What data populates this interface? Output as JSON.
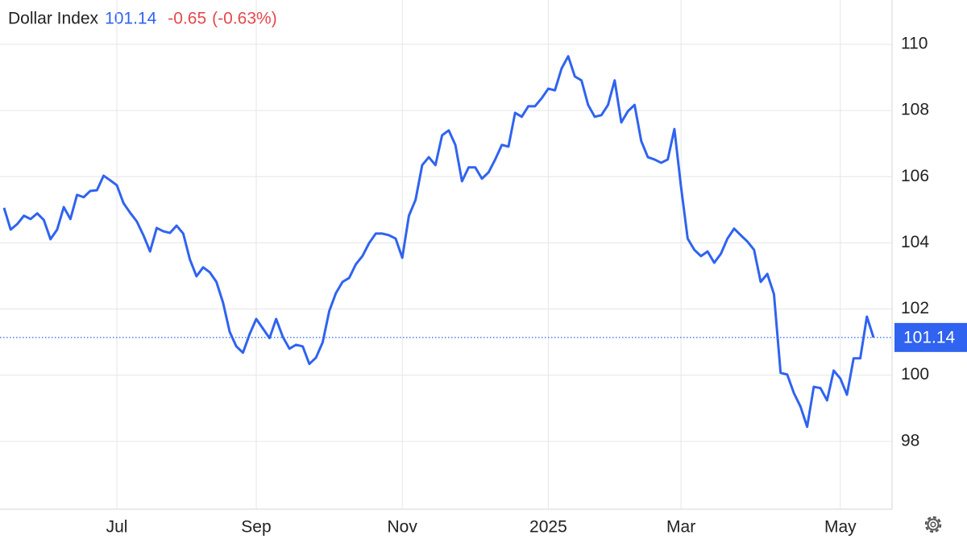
{
  "chart_data": {
    "type": "line",
    "change": "-0.65",
    "change_percent": "(-0.63%)",
    "categories": [
      null,
      null,
      null,
      null,
      null,
      null,
      null,
      null,
      null,
      null,
      null,
      null,
      null,
      null,
      null,
      null,
      null,
      "Jul",
      null,
      null,
      null,
      null,
      null,
      null,
      null,
      null,
      null,
      null,
      null,
      null,
      null,
      null,
      null,
      null,
      null,
      null,
      null,
      null,
      "Sep",
      null,
      null,
      null,
      null,
      null,
      null,
      null,
      null,
      null,
      null,
      null,
      null,
      null,
      null,
      null,
      null,
      null,
      null,
      null,
      null,
      null,
      "Nov",
      null,
      null,
      null,
      null,
      null,
      null,
      null,
      null,
      null,
      null,
      null,
      null,
      null,
      null,
      null,
      null,
      null,
      null,
      null,
      null,
      null,
      "2025",
      null,
      null,
      null,
      null,
      null,
      null,
      null,
      null,
      null,
      null,
      null,
      null,
      null,
      null,
      null,
      null,
      null,
      null,
      null,
      "Mar",
      null,
      null,
      null,
      null,
      null,
      null,
      null,
      null,
      null,
      null,
      null,
      null,
      null,
      null,
      null,
      null,
      null,
      null,
      null,
      null,
      null,
      null,
      null,
      "May",
      null,
      null,
      null,
      null,
      null
    ],
    "series": [
      {
        "name": "Dollar Index",
        "color": "#2f63f0",
        "values": [
          105.06,
          104.4,
          104.57,
          104.82,
          104.72,
          104.89,
          104.69,
          104.11,
          104.4,
          105.08,
          104.72,
          105.45,
          105.38,
          105.57,
          105.59,
          106.03,
          105.89,
          105.74,
          105.2,
          104.91,
          104.65,
          104.23,
          103.74,
          104.45,
          104.35,
          104.3,
          104.52,
          104.28,
          103.5,
          102.99,
          103.26,
          103.11,
          102.82,
          102.19,
          101.31,
          100.87,
          100.68,
          101.24,
          101.7,
          101.41,
          101.12,
          101.7,
          101.16,
          100.8,
          100.92,
          100.87,
          100.34,
          100.53,
          100.99,
          101.94,
          102.48,
          102.82,
          102.94,
          103.35,
          103.6,
          103.99,
          104.28,
          104.28,
          104.23,
          104.13,
          103.55,
          104.82,
          105.3,
          106.35,
          106.59,
          106.35,
          107.25,
          107.4,
          106.96,
          105.86,
          106.28,
          106.28,
          105.94,
          106.13,
          106.52,
          106.96,
          106.91,
          107.93,
          107.81,
          108.13,
          108.13,
          108.37,
          108.66,
          108.61,
          109.27,
          109.64,
          109.03,
          108.91,
          108.17,
          107.81,
          107.86,
          108.17,
          108.91,
          107.64,
          107.98,
          108.17,
          107.08,
          106.59,
          106.52,
          106.42,
          106.52,
          107.44,
          105.69,
          104.13,
          103.79,
          103.6,
          103.74,
          103.4,
          103.67,
          104.13,
          104.43,
          104.23,
          104.04,
          103.79,
          102.82,
          103.06,
          102.45,
          100.07,
          100.02,
          99.46,
          99.05,
          98.44,
          99.65,
          99.61,
          99.24,
          100.14,
          99.9,
          99.41,
          100.51,
          100.51,
          101.77,
          101.14
        ]
      }
    ],
    "ylim": [
      95.95,
      111.34
    ],
    "yticks": [
      98,
      100,
      102,
      104,
      106,
      108,
      110
    ],
    "grid": true
  }
}
